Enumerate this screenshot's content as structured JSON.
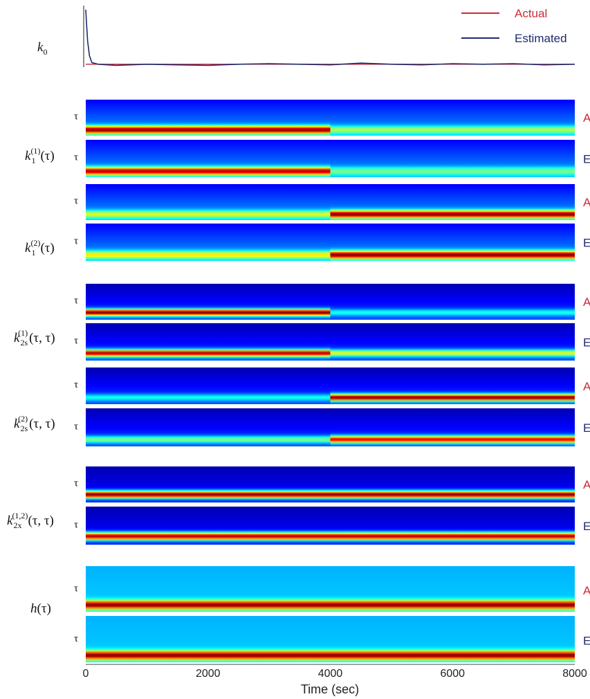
{
  "colors": {
    "actual": "#cc2a36",
    "estimated": "#1f2a6b",
    "jet_low": "#00007f",
    "jet_high": "#7f0000"
  },
  "legend": {
    "actual": "Actual",
    "estimated": "Estimated",
    "position": "top-right"
  },
  "rows": [
    {
      "id": "k1_1",
      "label": "k1(1)(τ)",
      "actual_tag": "A",
      "estimated_tag": "E"
    },
    {
      "id": "k1_2",
      "label": "k1(2)(τ)",
      "actual_tag": "A",
      "estimated_tag": "E"
    },
    {
      "id": "k2s_1",
      "label": "k2s(1)(τ, τ)",
      "actual_tag": "A",
      "estimated_tag": "E"
    },
    {
      "id": "k2s_2",
      "label": "k2s(2)(τ, τ)",
      "actual_tag": "A",
      "estimated_tag": "E"
    },
    {
      "id": "k2x_12",
      "label": "k2x(1,2)(τ, τ)",
      "actual_tag": "A",
      "estimated_tag": "E"
    },
    {
      "id": "h",
      "label": "h(τ)",
      "actual_tag": "A",
      "estimated_tag": "E"
    }
  ],
  "chart_data": [
    {
      "type": "line",
      "ylabel": "k0",
      "xlim": [
        0,
        8000
      ],
      "series": [
        {
          "name": "Actual",
          "x": [
            0,
            8000
          ],
          "y": [
            0.05,
            0.05
          ]
        },
        {
          "name": "Estimated",
          "x": [
            0,
            10,
            30,
            60,
            100,
            200,
            500,
            1000,
            1500,
            2000,
            2500,
            3000,
            3500,
            4000,
            4500,
            5000,
            5500,
            6000,
            6500,
            7000,
            7500,
            8000
          ],
          "y": [
            1.0,
            0.8,
            0.45,
            0.2,
            0.08,
            0.05,
            0.03,
            0.05,
            0.04,
            0.03,
            0.05,
            0.06,
            0.05,
            0.04,
            0.07,
            0.05,
            0.04,
            0.06,
            0.05,
            0.06,
            0.04,
            0.05
          ]
        }
      ],
      "ylim": [
        0,
        1.0
      ]
    },
    {
      "type": "heatmap",
      "title": "",
      "xlabel": "Time (sec)",
      "xlim": [
        0,
        8000
      ],
      "xticks": [
        "0",
        "2000",
        "4000",
        "6000",
        "8000"
      ],
      "ylabel": "τ",
      "colormap": "jet",
      "switch_time": 4000,
      "panels": [
        {
          "kernel": "k1(1)(τ)",
          "kind": "Actual",
          "peak_before": 1.0,
          "peak_after": 0.55
        },
        {
          "kernel": "k1(1)(τ)",
          "kind": "Estimated",
          "peak_before": 0.95,
          "peak_after": 0.5
        },
        {
          "kernel": "k1(2)(τ)",
          "kind": "Actual",
          "peak_before": 0.6,
          "peak_after": 1.0
        },
        {
          "kernel": "k1(2)(τ)",
          "kind": "Estimated",
          "peak_before": 0.65,
          "peak_after": 1.0
        },
        {
          "kernel": "k2s(1)(τ, τ)",
          "kind": "Actual",
          "peak_before": 1.0,
          "peak_after": 0.4
        },
        {
          "kernel": "k2s(1)(τ, τ)",
          "kind": "Estimated",
          "peak_before": 0.95,
          "peak_after": 0.6
        },
        {
          "kernel": "k2s(2)(τ, τ)",
          "kind": "Actual",
          "peak_before": 0.4,
          "peak_after": 1.0
        },
        {
          "kernel": "k2s(2)(τ, τ)",
          "kind": "Estimated",
          "peak_before": 0.5,
          "peak_after": 0.9
        },
        {
          "kernel": "k2x(1,2)(τ, τ)",
          "kind": "Actual",
          "peak_before": 1.0,
          "peak_after": 1.0
        },
        {
          "kernel": "k2x(1,2)(τ, τ)",
          "kind": "Estimated",
          "peak_before": 0.95,
          "peak_after": 0.95
        },
        {
          "kernel": "h(τ)",
          "kind": "Actual",
          "peak_before": 1.0,
          "peak_after": 1.0
        },
        {
          "kernel": "h(τ)",
          "kind": "Estimated",
          "peak_before": 1.0,
          "peak_after": 1.0
        }
      ]
    }
  ]
}
